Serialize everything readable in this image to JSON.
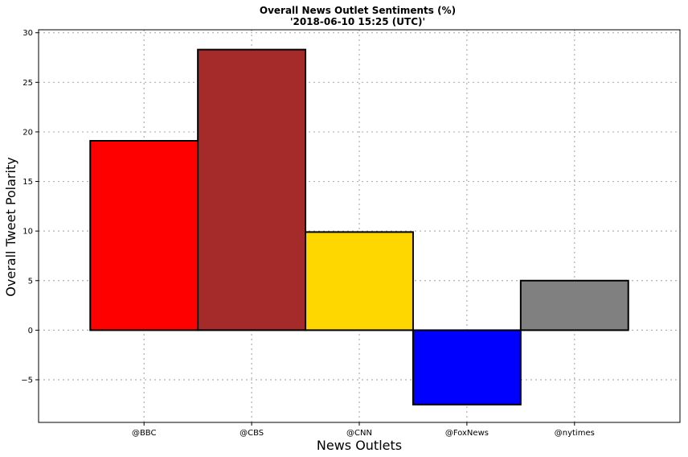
{
  "chart_data": {
    "type": "bar",
    "title": "Overall News Outlet Sentiments (%)",
    "subtitle": "'2018-06-10 15:25 (UTC)'",
    "xlabel": "News Outlets",
    "ylabel": "Overall Tweet Polarity",
    "categories": [
      "@BBC",
      "@CBS",
      "@CNN",
      "@FoxNews",
      "@nytimes"
    ],
    "values": [
      19.1,
      28.3,
      9.9,
      -7.5,
      5.0
    ],
    "colors": [
      "#ff0000",
      "#a52a2a",
      "#ffd700",
      "#0000ff",
      "#808080"
    ],
    "ylim": [
      -9.3,
      30.3
    ],
    "yticks": [
      -5,
      0,
      5,
      10,
      15,
      20,
      25,
      30
    ],
    "ytick_labels": [
      "−5",
      "0",
      "5",
      "10",
      "15",
      "20",
      "25",
      "30"
    ],
    "grid": true,
    "legend": "none"
  }
}
